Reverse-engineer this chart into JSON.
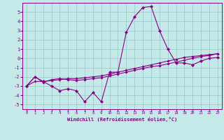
{
  "xlabel": "Windchill (Refroidissement éolien,°C)",
  "xlim": [
    -0.5,
    23.5
  ],
  "ylim": [
    -5.5,
    6.0
  ],
  "yticks": [
    -5,
    -4,
    -3,
    -2,
    -1,
    0,
    1,
    2,
    3,
    4,
    5
  ],
  "xticks": [
    0,
    1,
    2,
    3,
    4,
    5,
    6,
    7,
    8,
    9,
    10,
    11,
    12,
    13,
    14,
    15,
    16,
    17,
    18,
    19,
    20,
    21,
    22,
    23
  ],
  "background_color": "#c5e8e8",
  "line_color": "#880088",
  "grid_color": "#99cccc",
  "line1_x": [
    0,
    1,
    2,
    3,
    4,
    5,
    6,
    7,
    8,
    9,
    10,
    11,
    12,
    13,
    14,
    15,
    16,
    17,
    18,
    19,
    20,
    21,
    22,
    23
  ],
  "line1_y": [
    -3.0,
    -2.0,
    -2.5,
    -3.0,
    -3.5,
    -3.3,
    -3.5,
    -4.7,
    -3.7,
    -4.7,
    -1.5,
    -1.5,
    2.8,
    4.5,
    5.5,
    5.6,
    3.0,
    1.0,
    -0.5,
    -0.5,
    -0.7,
    -0.3,
    0.0,
    0.1
  ],
  "line2_x": [
    0,
    1,
    2,
    3,
    4,
    5,
    6,
    7,
    8,
    9,
    10,
    11,
    12,
    13,
    14,
    15,
    16,
    17,
    18,
    19,
    20,
    21,
    22,
    23
  ],
  "line2_y": [
    -3.0,
    -2.5,
    -2.5,
    -2.4,
    -2.3,
    -2.2,
    -2.2,
    -2.1,
    -2.0,
    -1.9,
    -1.7,
    -1.5,
    -1.3,
    -1.1,
    -0.9,
    -0.7,
    -0.5,
    -0.3,
    -0.1,
    0.1,
    0.2,
    0.3,
    0.4,
    0.5
  ],
  "line3_x": [
    0,
    1,
    2,
    3,
    4,
    5,
    6,
    7,
    8,
    9,
    10,
    11,
    12,
    13,
    14,
    15,
    16,
    17,
    18,
    19,
    20,
    21,
    22,
    23
  ],
  "line3_y": [
    -3.0,
    -2.0,
    -2.6,
    -2.3,
    -2.2,
    -2.3,
    -2.4,
    -2.3,
    -2.2,
    -2.1,
    -1.9,
    -1.7,
    -1.5,
    -1.3,
    -1.1,
    -0.9,
    -0.8,
    -0.6,
    -0.4,
    -0.2,
    0.0,
    0.2,
    0.3,
    0.5
  ]
}
